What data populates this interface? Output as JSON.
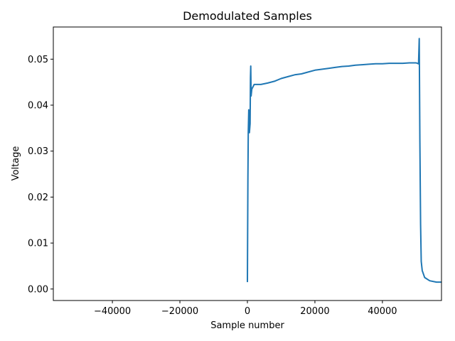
{
  "chart_data": {
    "type": "line",
    "title": "Demodulated Samples",
    "xlabel": "Sample number",
    "ylabel": "Voltage",
    "xlim": [
      -57500,
      57500
    ],
    "ylim": [
      -0.0025,
      0.057
    ],
    "x_ticks": [
      {
        "value": -40000,
        "label": "−40000"
      },
      {
        "value": -20000,
        "label": "−20000"
      },
      {
        "value": 0,
        "label": "0"
      },
      {
        "value": 20000,
        "label": "20000"
      },
      {
        "value": 40000,
        "label": "40000"
      }
    ],
    "y_ticks": [
      {
        "value": 0.0,
        "label": "0.00"
      },
      {
        "value": 0.01,
        "label": "0.01"
      },
      {
        "value": 0.02,
        "label": "0.02"
      },
      {
        "value": 0.03,
        "label": "0.03"
      },
      {
        "value": 0.04,
        "label": "0.04"
      },
      {
        "value": 0.05,
        "label": "0.05"
      }
    ],
    "grid": false,
    "color": "#1f77b4",
    "series": [
      {
        "x": [
          0,
          150,
          250,
          400,
          600,
          800,
          900,
          1000,
          1100,
          1300,
          2000,
          4000,
          6000,
          8000,
          10000,
          12000,
          14000,
          16000,
          18000,
          20000,
          22000,
          24000,
          26000,
          28000,
          30000,
          32000,
          34000,
          36000,
          38000,
          40000,
          42000,
          44000,
          46000,
          48000,
          50000,
          50700,
          50900,
          51100,
          51300,
          51500,
          51800,
          52500,
          54000,
          56000,
          57500
        ],
        "y": [
          0.0015,
          0.024,
          0.034,
          0.039,
          0.034,
          0.036,
          0.046,
          0.0485,
          0.042,
          0.0435,
          0.0445,
          0.0445,
          0.0448,
          0.0452,
          0.0458,
          0.0462,
          0.0466,
          0.0468,
          0.0472,
          0.0476,
          0.0478,
          0.048,
          0.0482,
          0.0484,
          0.0485,
          0.0487,
          0.0488,
          0.0489,
          0.049,
          0.049,
          0.0491,
          0.0491,
          0.0491,
          0.0492,
          0.0492,
          0.049,
          0.0545,
          0.032,
          0.014,
          0.006,
          0.004,
          0.0025,
          0.0018,
          0.0015,
          0.0015
        ]
      }
    ]
  }
}
